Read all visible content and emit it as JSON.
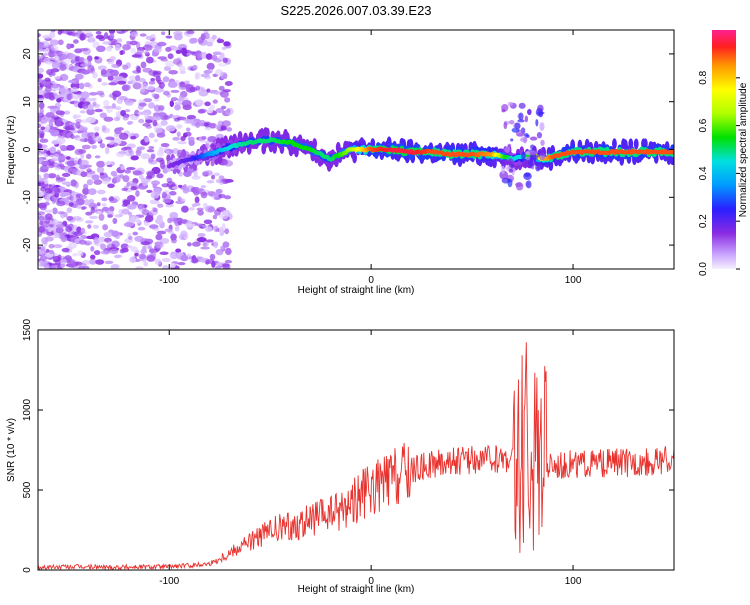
{
  "title": "S225.2026.007.03.39.E23",
  "chart_data": [
    {
      "type": "heatmap",
      "xlabel": "Height of straight line (km)",
      "ylabel": "Frequency (Hz)",
      "xlim": [
        -165,
        150
      ],
      "ylim": [
        -25,
        25
      ],
      "xticks": [
        "-100",
        "0",
        "100"
      ],
      "xtick_values": [
        -100,
        0,
        100
      ],
      "yticks": [
        "-20",
        "-10",
        "0",
        "10",
        "20"
      ],
      "ytick_values": [
        -20,
        -10,
        0,
        10,
        20
      ],
      "colorbar": {
        "label": "Normalized spectral amplitude",
        "range": [
          0,
          1
        ],
        "ticks": [
          "0.0",
          "0.2",
          "0.4",
          "0.6",
          "0.8"
        ],
        "tick_values": [
          0,
          0.2,
          0.4,
          0.6,
          0.8
        ],
        "colormap": "rainbow-purple-to-red"
      },
      "ridge": {
        "x": [
          -100,
          -90,
          -80,
          -70,
          -60,
          -50,
          -40,
          -30,
          -25,
          -20,
          -10,
          0,
          10,
          20,
          30,
          40,
          50,
          60,
          65,
          70,
          75,
          80,
          85,
          90,
          100,
          110,
          120,
          130,
          140,
          150
        ],
        "y": [
          -3.5,
          -2,
          -1,
          0.5,
          1.5,
          2,
          1.5,
          0,
          -1,
          -2,
          0,
          0,
          0,
          -0.5,
          -0.5,
          -1,
          -1,
          -1,
          -1.5,
          -2,
          -1.5,
          -1,
          -2,
          -1.5,
          -0.5,
          -0.5,
          -0.5,
          -0.5,
          -0.5,
          -0.5
        ],
        "amplitude": [
          0.15,
          0.2,
          0.35,
          0.45,
          0.5,
          0.5,
          0.55,
          0.55,
          0.5,
          0.5,
          0.65,
          0.9,
          0.95,
          0.95,
          0.9,
          0.9,
          0.9,
          0.85,
          0.6,
          0.45,
          0.45,
          0.6,
          0.8,
          0.9,
          0.9,
          0.9,
          0.9,
          0.9,
          0.9,
          0.9
        ]
      }
    },
    {
      "type": "line",
      "xlabel": "Height of straight line (km)",
      "ylabel": "SNR (10 * v/v)",
      "xlim": [
        -165,
        150
      ],
      "ylim": [
        0,
        1500
      ],
      "xticks": [
        "-100",
        "0",
        "100"
      ],
      "xtick_values": [
        -100,
        0,
        100
      ],
      "yticks": [
        "0",
        "500",
        "1000",
        "1500"
      ],
      "ytick_values": [
        0,
        500,
        1000,
        1500
      ],
      "color": "#e8322e",
      "series": [
        {
          "x": [
            -165,
            -150,
            -130,
            -110,
            -100,
            -90,
            -80,
            -75,
            -70,
            -65,
            -60,
            -55,
            -50,
            -45,
            -40,
            -35,
            -30,
            -25,
            -20,
            -15,
            -10,
            -5,
            0,
            10,
            20,
            30,
            40,
            50,
            60,
            65,
            70,
            73,
            75,
            77,
            79,
            81,
            83,
            85,
            90,
            100,
            110,
            120,
            130,
            140,
            150
          ],
          "y": [
            15,
            20,
            18,
            20,
            22,
            28,
            40,
            70,
            110,
            150,
            180,
            210,
            240,
            260,
            270,
            290,
            310,
            330,
            350,
            380,
            420,
            470,
            500,
            560,
            620,
            660,
            680,
            690,
            690,
            695,
            700,
            650,
            600,
            650,
            700,
            650,
            600,
            640,
            660,
            660,
            660,
            670,
            670,
            680,
            690
          ]
        }
      ]
    }
  ]
}
